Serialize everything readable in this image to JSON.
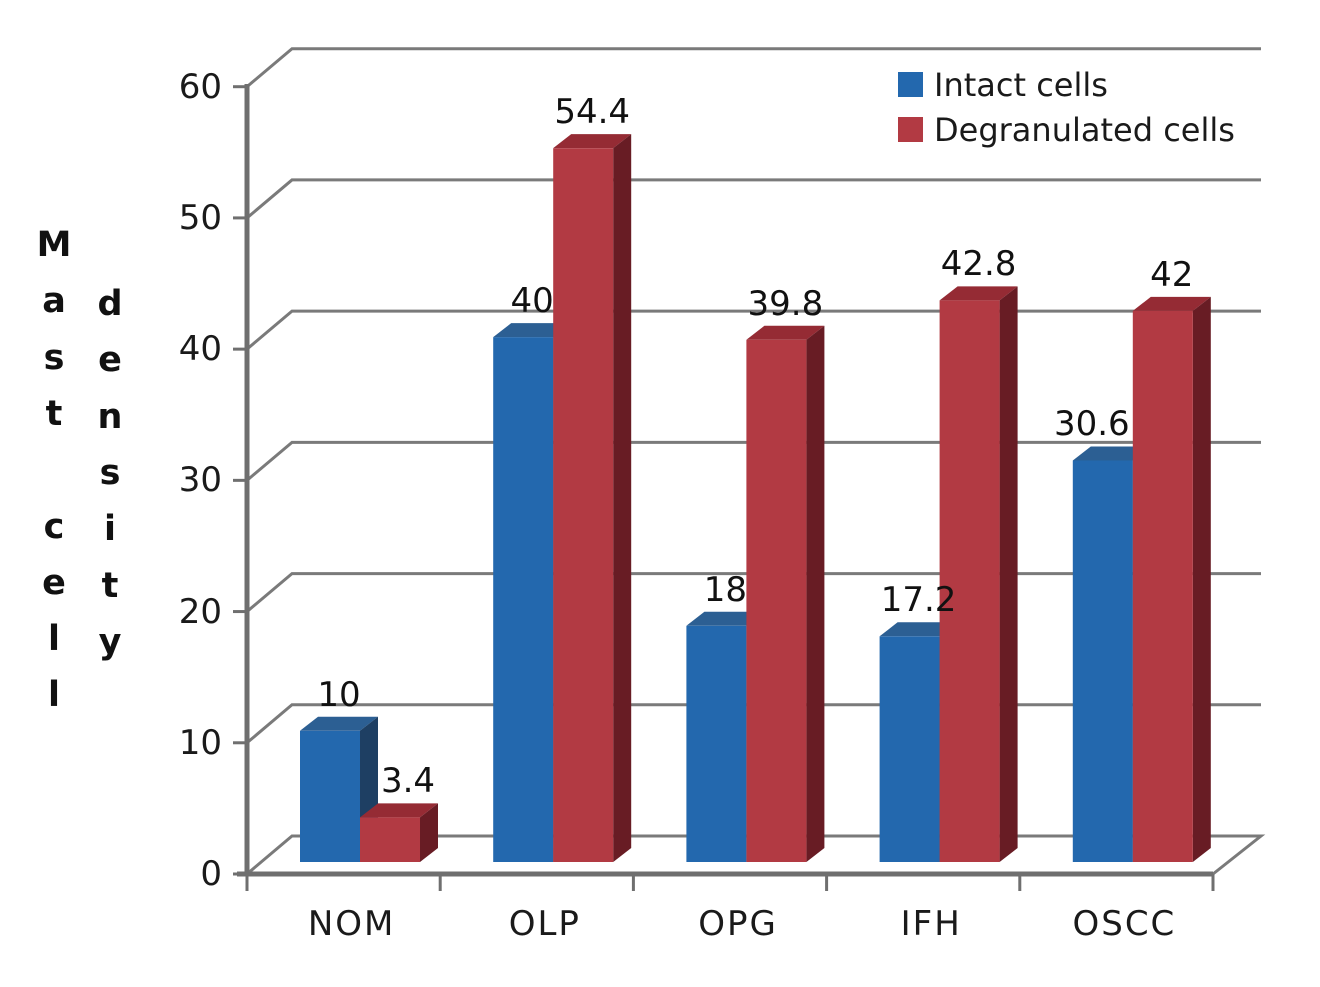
{
  "chart_data": {
    "type": "bar",
    "style": "3d-bar",
    "title": "",
    "categories": [
      "NOM",
      "OLP",
      "OPG",
      "IFH",
      "OSCC"
    ],
    "series": [
      {
        "name": "Intact cells",
        "values": [
          10,
          40,
          18,
          17.2,
          30.6
        ],
        "labels": [
          "10",
          "40",
          "18",
          "17.2",
          "30.6"
        ],
        "color": "#2368AE",
        "color_top": "#2C5F93",
        "color_side": "#1E3F63"
      },
      {
        "name": "Degranulated cells",
        "values": [
          3.4,
          54.4,
          39.8,
          42.8,
          42
        ],
        "labels": [
          "3.4",
          "54.4",
          "39.8",
          "42.8",
          "42"
        ],
        "color": "#B23A43",
        "color_top": "#952B34",
        "color_side": "#681C24"
      }
    ],
    "xlabel": "",
    "ylabel": "Mast cell density",
    "ylabel_columns": [
      "Mast cell",
      "density"
    ],
    "yticks": [
      0,
      10,
      20,
      30,
      40,
      50,
      60
    ],
    "ylim": [
      0,
      60
    ],
    "grid": true,
    "legend_position": "top-right",
    "gridline_color": "#7A7A7A",
    "axis_color": "#6F6F6F",
    "text_color": "#1A1A1A",
    "background": "#FFFFFF"
  }
}
